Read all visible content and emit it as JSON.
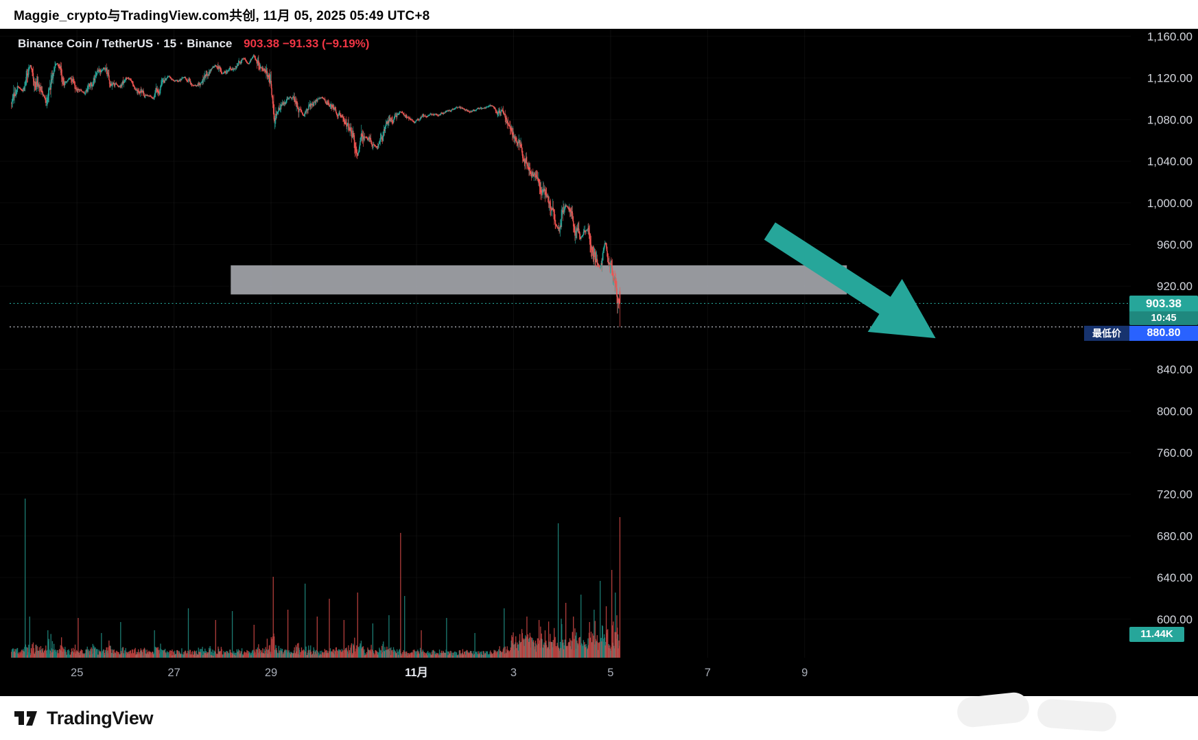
{
  "header": {
    "title": "Maggie_crypto与TradingView.com共创, 11月 05, 2025 05:49 UTC+8"
  },
  "symbol_bar": {
    "name": "Binance Coin / TetherUS",
    "interval": "15",
    "exchange": "Binance",
    "full": "Binance Coin / TetherUS · 15 · Binance",
    "quote": "903.38 −91.33 (−9.19%)"
  },
  "footer": {
    "brand": "TradingView",
    "logo": "tradingview-logo-icon"
  },
  "colors": {
    "up": "#26a69a",
    "down": "#ef5350",
    "quote_red": "#f23645",
    "badge_teal": "#26a69a",
    "badge_blue": "#2962ff",
    "badge_blue_dark": "#17336e",
    "zone_gray": "#a6a9ae",
    "arrow_teal": "#26a69a",
    "axis_text": "#d5d8df",
    "axis_text_dim": "#a9aeb8",
    "low_line": "#cfd3dc",
    "bg_chart": "#000000",
    "bg_page": "#ffffff"
  },
  "chart_data": {
    "type": "candlestick",
    "title": "Binance Coin / TetherUS · 15 · Binance",
    "last_price": 903.38,
    "change": -91.33,
    "change_pct": "−9.19%",
    "countdown": "10:45",
    "low_label": "最低价",
    "low_price": "880.80",
    "low_value": 880.8,
    "volume_display": "11.44K",
    "ylim": [
      590,
      1165
    ],
    "y_ticks": [
      {
        "v": 1160,
        "label": "1,160.00"
      },
      {
        "v": 1120,
        "label": "1,120.00"
      },
      {
        "v": 1080,
        "label": "1,080.00"
      },
      {
        "v": 1040,
        "label": "1,040.00"
      },
      {
        "v": 1000,
        "label": "1,000.00"
      },
      {
        "v": 960,
        "label": "960.00"
      },
      {
        "v": 920,
        "label": "920.00"
      },
      {
        "v": 840,
        "label": "840.00"
      },
      {
        "v": 800,
        "label": "800.00"
      },
      {
        "v": 760,
        "label": "760.00"
      },
      {
        "v": 720,
        "label": "720.00"
      },
      {
        "v": 680,
        "label": "680.00"
      },
      {
        "v": 640,
        "label": "640.00"
      },
      {
        "v": 600,
        "label": "600.00"
      }
    ],
    "x_ticks": [
      {
        "d": 0,
        "label": "25",
        "bold": false
      },
      {
        "d": 2,
        "label": "27",
        "bold": false
      },
      {
        "d": 4,
        "label": "29",
        "bold": false
      },
      {
        "d": 7,
        "label": "11月",
        "bold": true
      },
      {
        "d": 9,
        "label": "3",
        "bold": false
      },
      {
        "d": 11,
        "label": "5",
        "bold": false
      },
      {
        "d": 13,
        "label": "7",
        "bold": false
      },
      {
        "d": 15,
        "label": "9",
        "bold": false
      }
    ],
    "d_start": -1.35,
    "d_end": 11.19,
    "price_path": [
      [
        -1.35,
        1096
      ],
      [
        -1.22,
        1118
      ],
      [
        -1.11,
        1108
      ],
      [
        -0.95,
        1132
      ],
      [
        -0.87,
        1118
      ],
      [
        -0.75,
        1104
      ],
      [
        -0.63,
        1100
      ],
      [
        -0.5,
        1126
      ],
      [
        -0.4,
        1134
      ],
      [
        -0.25,
        1117
      ],
      [
        -0.16,
        1120
      ],
      [
        0.0,
        1108
      ],
      [
        0.16,
        1105
      ],
      [
        0.35,
        1118
      ],
      [
        0.56,
        1130
      ],
      [
        0.7,
        1116
      ],
      [
        0.87,
        1110
      ],
      [
        1.05,
        1120
      ],
      [
        1.19,
        1116
      ],
      [
        1.4,
        1104
      ],
      [
        1.59,
        1102
      ],
      [
        1.75,
        1115
      ],
      [
        1.9,
        1120
      ],
      [
        2.1,
        1117
      ],
      [
        2.22,
        1122
      ],
      [
        2.4,
        1112
      ],
      [
        2.54,
        1115
      ],
      [
        2.7,
        1127
      ],
      [
        2.86,
        1132
      ],
      [
        3.0,
        1122
      ],
      [
        3.1,
        1126
      ],
      [
        3.28,
        1131
      ],
      [
        3.45,
        1140
      ],
      [
        3.55,
        1133
      ],
      [
        3.65,
        1141
      ],
      [
        3.8,
        1128
      ],
      [
        3.95,
        1122
      ],
      [
        4.02,
        1105
      ],
      [
        4.08,
        1082
      ],
      [
        4.2,
        1092
      ],
      [
        4.29,
        1096
      ],
      [
        4.45,
        1101
      ],
      [
        4.55,
        1088
      ],
      [
        4.68,
        1082
      ],
      [
        4.8,
        1092
      ],
      [
        4.92,
        1097
      ],
      [
        5.05,
        1102
      ],
      [
        5.16,
        1098
      ],
      [
        5.3,
        1090
      ],
      [
        5.4,
        1086
      ],
      [
        5.55,
        1079
      ],
      [
        5.7,
        1066
      ],
      [
        5.79,
        1044
      ],
      [
        5.88,
        1060
      ],
      [
        5.95,
        1068
      ],
      [
        6.08,
        1058
      ],
      [
        6.19,
        1054
      ],
      [
        6.3,
        1065
      ],
      [
        6.43,
        1075
      ],
      [
        6.55,
        1082
      ],
      [
        6.67,
        1087
      ],
      [
        6.8,
        1082
      ],
      [
        6.98,
        1078
      ],
      [
        7.15,
        1083
      ],
      [
        7.3,
        1086
      ],
      [
        7.45,
        1084
      ],
      [
        7.62,
        1088
      ],
      [
        7.8,
        1090
      ],
      [
        7.93,
        1091
      ],
      [
        8.1,
        1088
      ],
      [
        8.25,
        1089
      ],
      [
        8.4,
        1091
      ],
      [
        8.57,
        1093
      ],
      [
        8.7,
        1088
      ],
      [
        8.81,
        1081
      ],
      [
        8.92,
        1072
      ],
      [
        9.04,
        1062
      ],
      [
        9.18,
        1049
      ],
      [
        9.28,
        1038
      ],
      [
        9.4,
        1030
      ],
      [
        9.52,
        1024
      ],
      [
        9.64,
        1006
      ],
      [
        9.76,
        993
      ],
      [
        9.85,
        981
      ],
      [
        9.92,
        974
      ],
      [
        10.0,
        990
      ],
      [
        10.08,
        1001
      ],
      [
        10.16,
        996
      ],
      [
        10.23,
        989
      ],
      [
        10.31,
        975
      ],
      [
        10.39,
        962
      ],
      [
        10.47,
        970
      ],
      [
        10.55,
        977
      ],
      [
        10.62,
        958
      ],
      [
        10.66,
        948
      ],
      [
        10.73,
        941
      ],
      [
        10.79,
        937
      ],
      [
        10.85,
        948
      ],
      [
        10.91,
        957
      ],
      [
        10.96,
        946
      ],
      [
        11.02,
        934
      ],
      [
        11.07,
        925
      ],
      [
        11.1,
        916
      ],
      [
        11.15,
        908
      ],
      [
        11.19,
        903.4
      ]
    ],
    "supply_zone": {
      "d1": 3.17,
      "d2": 15.87,
      "price_top": 940,
      "price_bottom": 912
    },
    "arrow": {
      "from": {
        "d": 14.28,
        "price": 973
      },
      "to": {
        "d": 17.7,
        "price": 870
      }
    },
    "volume_spikes": [
      [
        -1.07,
        232
      ],
      [
        -0.98,
        60
      ],
      [
        -0.6,
        40
      ],
      [
        0.02,
        58
      ],
      [
        0.5,
        36
      ],
      [
        0.9,
        52
      ],
      [
        1.6,
        40
      ],
      [
        2.3,
        72
      ],
      [
        2.86,
        55
      ],
      [
        3.2,
        68
      ],
      [
        3.65,
        48
      ],
      [
        4.05,
        118
      ],
      [
        4.35,
        70
      ],
      [
        4.7,
        108
      ],
      [
        4.95,
        60
      ],
      [
        5.2,
        86
      ],
      [
        5.5,
        55
      ],
      [
        5.79,
        95
      ],
      [
        6.1,
        50
      ],
      [
        6.43,
        62
      ],
      [
        6.67,
        182
      ],
      [
        6.75,
        90
      ],
      [
        7.1,
        40
      ],
      [
        7.62,
        58
      ],
      [
        8.2,
        36
      ],
      [
        8.81,
        72
      ],
      [
        9.28,
        60
      ],
      [
        9.52,
        55
      ],
      [
        9.92,
        196
      ],
      [
        10.08,
        80
      ],
      [
        10.23,
        60
      ],
      [
        10.39,
        92
      ],
      [
        10.66,
        70
      ],
      [
        10.79,
        112
      ],
      [
        10.91,
        75
      ],
      [
        11.02,
        128
      ],
      [
        11.1,
        95
      ],
      [
        11.19,
        205
      ]
    ]
  }
}
